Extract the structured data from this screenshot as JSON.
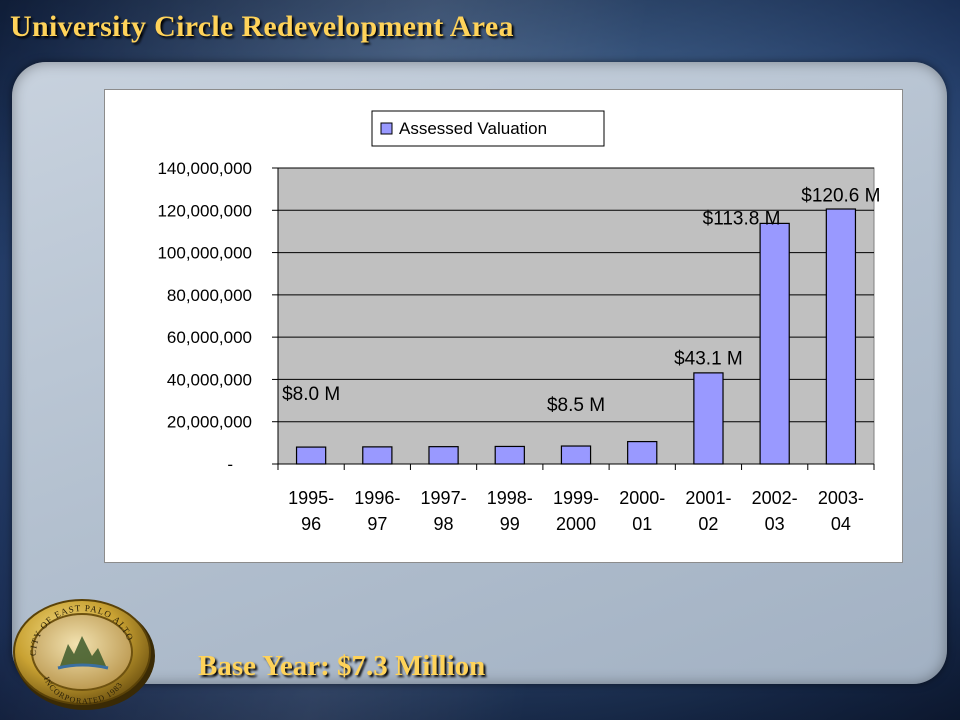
{
  "slide": {
    "title": "University Circle Redevelopment Area",
    "footer": "Base Year: $7.3 Million",
    "title_color": "#ffd35a",
    "seal": {
      "icon": "city-seal-icon",
      "text_top": "CITY OF EAST PALO ALTO",
      "text_bottom": "INCORPORATED 1983"
    }
  },
  "chart_data": {
    "type": "bar",
    "title": "",
    "xlabel": "",
    "ylabel": "",
    "categories": [
      "1995-\n96",
      "1996-\n97",
      "1997-\n98",
      "1998-\n99",
      "1999-\n2000",
      "2000-\n01",
      "2001-\n02",
      "2002-\n03",
      "2003-\n04"
    ],
    "series": [
      {
        "name": "Assessed Valuation",
        "color": "#9999ff",
        "values": [
          8000000,
          8100000,
          8200000,
          8300000,
          8500000,
          10600000,
          43100000,
          113800000,
          120600000
        ]
      }
    ],
    "ylim": [
      0,
      140000000
    ],
    "yticks": [
      0,
      20000000,
      40000000,
      60000000,
      80000000,
      100000000,
      120000000,
      140000000
    ],
    "ytick_labels": [
      "-",
      "20,000,000",
      "40,000,000",
      "60,000,000",
      "80,000,000",
      "100,000,000",
      "120,000,000",
      "140,000,000"
    ],
    "grid": true,
    "plot_background": "#c0c0c0",
    "legend_position": "top",
    "annotations": [
      {
        "text": "$8.0 M",
        "x_index": 0,
        "y": 33000000
      },
      {
        "text": "$8.5 M",
        "x_index": 4,
        "y": 28000000
      },
      {
        "text": "$43.1 M",
        "x_index": 6,
        "y": 50000000
      },
      {
        "text": "$113.8 M",
        "x_index": 6.5,
        "y": 116000000
      },
      {
        "text": "$120.6 M",
        "x_index": 8,
        "y": 127000000
      }
    ]
  }
}
